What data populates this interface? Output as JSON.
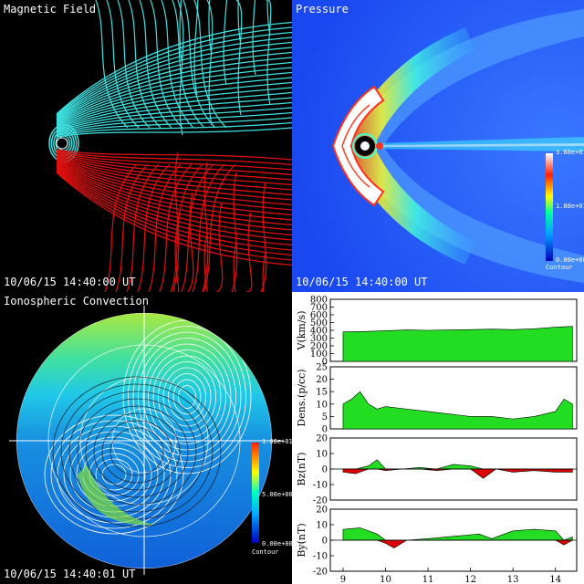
{
  "panels": {
    "magnetic": {
      "title": "Magnetic Field",
      "time": "10/06/15 14:40:00 UT"
    },
    "pressure": {
      "title": "Pressure",
      "time": "10/06/15 14:40:00 UT",
      "colorbar": {
        "max": "3.60e+01",
        "mid": "1.80e+01",
        "min": "0.00e+00",
        "caption": "Contour"
      }
    },
    "ionosphere": {
      "title": "Ionospheric Convection",
      "time": "10/06/15 14:40:01 UT",
      "colorbar": {
        "max": "1.00e+01",
        "mid": "5.00e+00",
        "min": "0.00e+00",
        "caption": "Contour"
      }
    }
  },
  "colors": {
    "closed_field": "#3fe0e0",
    "open_field": "#e01010",
    "positive_fill": "#22dd22",
    "negative_fill": "#dd0000"
  },
  "chart_data": [
    {
      "type": "area",
      "ylabel": "V(km/s)",
      "ylim": [
        0,
        800
      ],
      "yticks": [
        0,
        100,
        200,
        300,
        400,
        500,
        600,
        700,
        800
      ],
      "x": [
        9,
        9.5,
        10,
        10.5,
        11,
        11.5,
        12,
        12.5,
        13,
        13.5,
        14,
        14.4
      ],
      "values": [
        380,
        385,
        395,
        405,
        400,
        405,
        410,
        415,
        410,
        420,
        440,
        450
      ]
    },
    {
      "type": "area",
      "ylabel": "Dens.(p/cc)",
      "ylim": [
        0,
        25
      ],
      "yticks": [
        0,
        5,
        10,
        15,
        20,
        25
      ],
      "x": [
        9,
        9.2,
        9.4,
        9.6,
        9.8,
        10,
        10.5,
        11,
        11.5,
        12,
        12.5,
        13,
        13.5,
        14,
        14.2,
        14.4
      ],
      "values": [
        10,
        12,
        15,
        10,
        8,
        9,
        8,
        7,
        6,
        5,
        5,
        4,
        5,
        7,
        12,
        10
      ]
    },
    {
      "type": "area",
      "ylabel": "Bz(nT)",
      "ylim": [
        -20,
        20
      ],
      "yticks": [
        -20,
        -10,
        0,
        10,
        20
      ],
      "x": [
        9,
        9.3,
        9.6,
        9.8,
        10,
        10.4,
        10.8,
        11.2,
        11.6,
        12,
        12.3,
        12.6,
        13,
        13.5,
        14,
        14.4
      ],
      "values": [
        -2,
        -3,
        2,
        6,
        -1,
        0,
        1,
        -1,
        3,
        2,
        -6,
        0,
        -2,
        -1,
        -2,
        -2
      ]
    },
    {
      "type": "area",
      "ylabel": "By(nT)",
      "ylim": [
        -20,
        20
      ],
      "yticks": [
        -20,
        -10,
        0,
        10,
        20
      ],
      "x": [
        9,
        9.4,
        9.8,
        10,
        10.2,
        10.5,
        11,
        11.4,
        11.8,
        12.2,
        12.5,
        13,
        13.5,
        14,
        14.2,
        14.4
      ],
      "values": [
        7,
        8,
        4,
        -2,
        -5,
        0,
        1,
        2,
        3,
        4,
        1,
        6,
        7,
        6,
        -3,
        2
      ],
      "xticks": [
        9,
        10,
        11,
        12,
        13,
        14
      ]
    }
  ]
}
